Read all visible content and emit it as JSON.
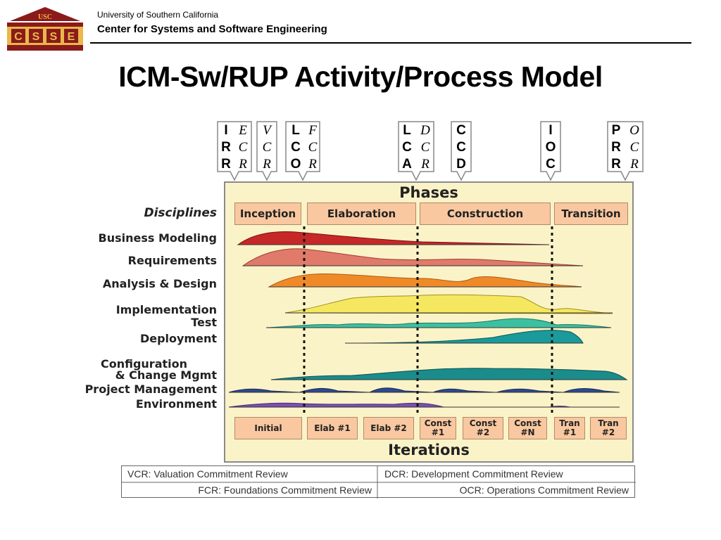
{
  "header": {
    "logo_text": "USC",
    "logo_letters": [
      "C",
      "S",
      "S",
      "E"
    ],
    "org_line1": "University of Southern California",
    "org_line2": "Center for Systems and Software Engineering",
    "colors": {
      "logo_maroon": "#8b1a1a",
      "logo_gold": "#e8b84a"
    }
  },
  "title": "ICM-Sw/RUP Activity/Process Model",
  "milestones": [
    {
      "letters": [
        "I",
        "R",
        "R"
      ],
      "style": "bold"
    },
    {
      "letters": [
        "E",
        "C",
        "R"
      ],
      "style": "italic"
    },
    {
      "letters": [
        "V",
        "C",
        "R"
      ],
      "style": "italic"
    },
    {
      "letters": [
        "L",
        "C",
        "O"
      ],
      "style": "bold"
    },
    {
      "letters": [
        "F",
        "C",
        "R"
      ],
      "style": "italic"
    },
    {
      "letters": [
        "L",
        "C",
        "A"
      ],
      "style": "bold"
    },
    {
      "letters": [
        "D",
        "C",
        "R"
      ],
      "style": "italic"
    },
    {
      "letters": [
        "C",
        "C",
        "D"
      ],
      "style": "bold"
    },
    {
      "letters": [
        "I",
        "O",
        "C"
      ],
      "style": "bold"
    },
    {
      "letters": [
        "P",
        "R",
        "R"
      ],
      "style": "bold"
    },
    {
      "letters": [
        "O",
        "C",
        "R"
      ],
      "style": "italic"
    }
  ],
  "diagram": {
    "phases_title": "Phases",
    "iterations_title": "Iterations",
    "disciplines_heading": "Disciplines",
    "phases": [
      "Inception",
      "Elaboration",
      "Construction",
      "Transition"
    ],
    "iterations": [
      [
        "Initial"
      ],
      [
        "Elab #1"
      ],
      [
        "Elab #2"
      ],
      [
        "Const",
        "#1"
      ],
      [
        "Const",
        "#2"
      ],
      [
        "Const",
        "#N"
      ],
      [
        "Tran",
        "#1"
      ],
      [
        "Tran",
        "#2"
      ]
    ],
    "disciplines": [
      "Business Modeling",
      "Requirements",
      "Analysis & Design",
      "Implementation",
      "Test",
      "Deployment",
      "Configuration",
      "& Change Mgmt",
      "Project Management",
      "Environment"
    ],
    "colors": {
      "background": "#fbf3c8",
      "box": "#f9c8a0",
      "business_modeling": "#c62828",
      "requirements": "#e07a6a",
      "analysis_design": "#f08a28",
      "implementation": "#f5e860",
      "test": "#3cc0a0",
      "deployment": "#1a9a9a",
      "config_change": "#1a8c8c",
      "project_mgmt": "#2c4a8c",
      "environment": "#7a50b0"
    }
  },
  "legend": {
    "vcr": "VCR: Valuation Commitment Review",
    "dcr": "DCR: Development Commitment Review",
    "fcr": "FCR: Foundations Commitment Review",
    "ocr": "OCR: Operations Commitment Review"
  }
}
